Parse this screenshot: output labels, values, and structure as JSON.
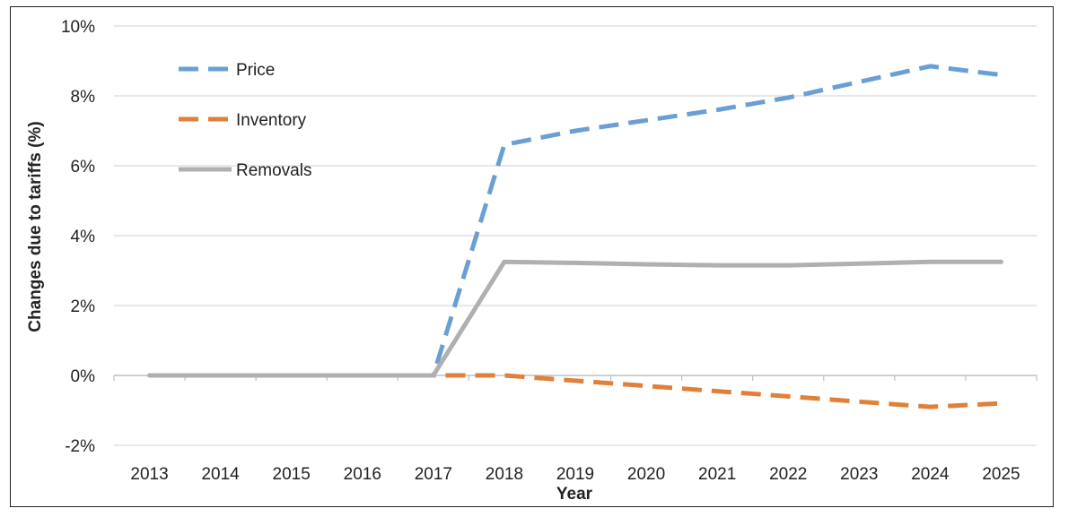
{
  "chart_data": {
    "type": "line",
    "title": "",
    "xlabel": "Year",
    "ylabel": "Changes due to tariffs (%)",
    "categories": [
      "2013",
      "2014",
      "2015",
      "2016",
      "2017",
      "2018",
      "2019",
      "2020",
      "2021",
      "2022",
      "2023",
      "2024",
      "2025"
    ],
    "y_ticks": [
      -2,
      0,
      2,
      4,
      6,
      8,
      10
    ],
    "y_tick_labels": [
      "-2%",
      "0%",
      "2%",
      "4%",
      "6%",
      "8%",
      "10%"
    ],
    "ylim": [
      -2,
      10
    ],
    "grid": true,
    "legend_position": "top-left",
    "series": [
      {
        "name": "Price",
        "color": "#6a9fd4",
        "dash": "dashed",
        "values": [
          0,
          0,
          0,
          0,
          0,
          6.6,
          7.0,
          7.3,
          7.6,
          7.95,
          8.4,
          8.85,
          8.6
        ]
      },
      {
        "name": "Inventory",
        "color": "#e0803a",
        "dash": "dashed",
        "values": [
          0,
          0,
          0,
          0,
          0,
          0.0,
          -0.15,
          -0.3,
          -0.45,
          -0.6,
          -0.75,
          -0.9,
          -0.8
        ]
      },
      {
        "name": "Removals",
        "color": "#b0b0b0",
        "dash": "solid",
        "values": [
          0,
          0,
          0,
          0,
          0,
          3.25,
          3.22,
          3.18,
          3.15,
          3.15,
          3.2,
          3.25,
          3.25
        ]
      }
    ]
  }
}
